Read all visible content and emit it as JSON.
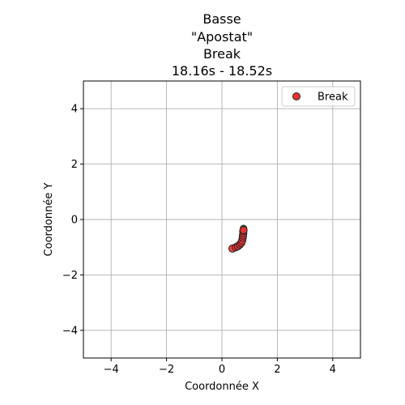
{
  "chart_data": {
    "type": "scatter",
    "title_lines": [
      "Basse",
      "\"Apostat\"",
      "Break",
      "18.16s - 18.52s"
    ],
    "xlabel": "Coordonnée X",
    "ylabel": "Coordonnée Y",
    "xlim": [
      -5,
      5
    ],
    "ylim": [
      -5,
      5
    ],
    "xticks": [
      -4,
      -2,
      0,
      2,
      4
    ],
    "yticks": [
      -4,
      -2,
      0,
      2,
      4
    ],
    "xtick_labels": [
      "−4",
      "−2",
      "0",
      "2",
      "4"
    ],
    "ytick_labels": [
      "−4",
      "−2",
      "0",
      "2",
      "4"
    ],
    "grid": true,
    "legend_position": "top-right",
    "series": [
      {
        "name": "Break",
        "color": "#e8332f",
        "edge_color": "#222222",
        "points": [
          {
            "x": 0.38,
            "y": -1.05
          },
          {
            "x": 0.5,
            "y": -1.0
          },
          {
            "x": 0.58,
            "y": -0.96
          },
          {
            "x": 0.65,
            "y": -0.9
          },
          {
            "x": 0.7,
            "y": -0.84
          },
          {
            "x": 0.73,
            "y": -0.76
          },
          {
            "x": 0.75,
            "y": -0.66
          },
          {
            "x": 0.76,
            "y": -0.58
          },
          {
            "x": 0.77,
            "y": -0.5
          },
          {
            "x": 0.77,
            "y": -0.42
          },
          {
            "x": 0.78,
            "y": -0.38
          }
        ],
        "first_point_color": "#2e8b57"
      }
    ]
  }
}
